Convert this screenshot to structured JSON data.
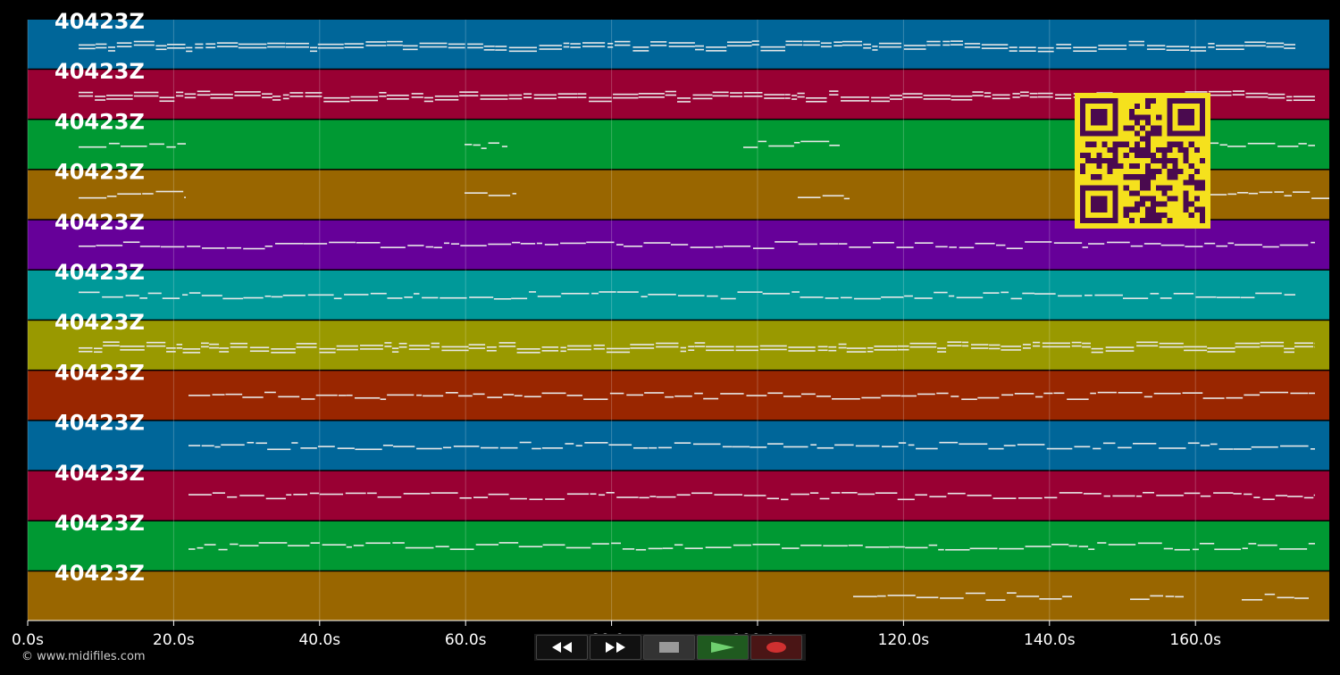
{
  "tracks": [
    {
      "label": "40423Z",
      "color": "#006699"
    },
    {
      "label": "40423Z",
      "color": "#990033"
    },
    {
      "label": "40423Z",
      "color": "#009933"
    },
    {
      "label": "40423Z",
      "color": "#996600"
    },
    {
      "label": "40423Z",
      "color": "#660099"
    },
    {
      "label": "40423Z",
      "color": "#009999"
    },
    {
      "label": "40423Z",
      "color": "#999900"
    },
    {
      "label": "40423Z",
      "color": "#992600"
    },
    {
      "label": "40423Z",
      "color": "#006699"
    },
    {
      "label": "40423Z",
      "color": "#990033"
    },
    {
      "label": "40423Z",
      "color": "#009933"
    },
    {
      "label": "40423Z",
      "color": "#996600"
    }
  ],
  "timeline": {
    "ticks": [
      "0.0s",
      "20.0s",
      "40.0s",
      "60.0s",
      "80.0s",
      "100.0s",
      "120.0s",
      "140.0s",
      "160.0s"
    ]
  },
  "copyright": "© www.midifiles.com",
  "transport": {
    "rewind_icon": "rewind-icon",
    "forward_icon": "fast-forward-icon",
    "stop_icon": "stop-icon",
    "play_icon": "play-icon",
    "record_icon": "record-icon"
  },
  "qr_icon": "qr-code-icon"
}
